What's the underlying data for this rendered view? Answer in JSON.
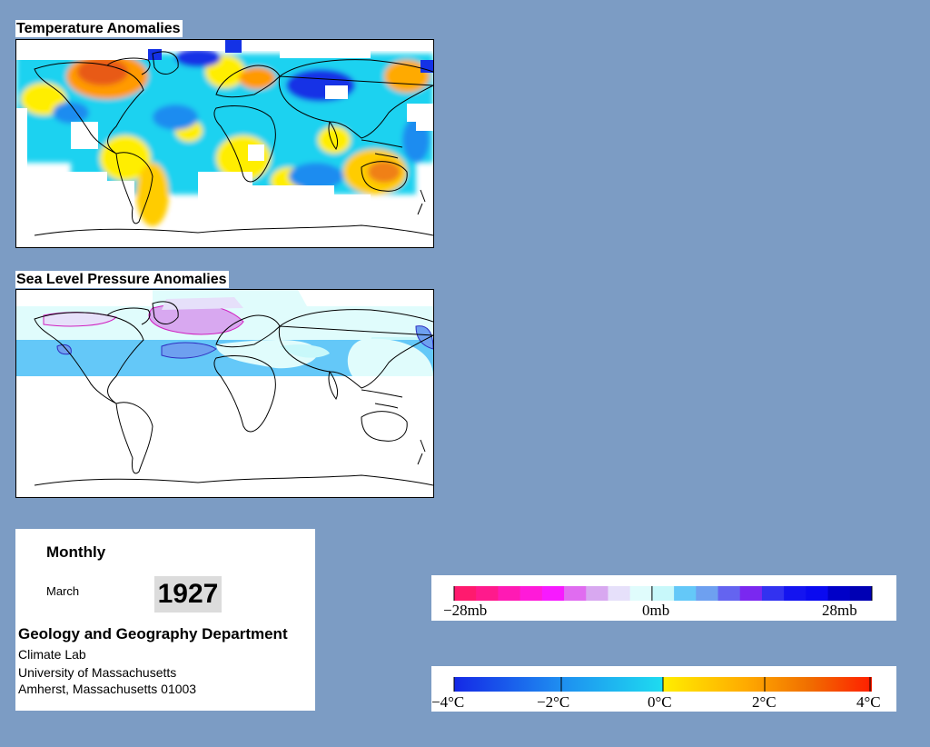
{
  "temperature_panel": {
    "title": "Temperature Anomalies"
  },
  "pressure_panel": {
    "title": "Sea Level Pressure Anomalies"
  },
  "info": {
    "period": "Monthly",
    "month": "March",
    "year": "1927",
    "department": "Geology and Geography Department",
    "lab": "Climate Lab",
    "university": "University of Massachusetts",
    "address": "Amherst, Massachusetts 01003"
  },
  "pressure_legend": {
    "labels": [
      "−28mb",
      "0mb",
      "28mb"
    ],
    "colors": [
      "#ff1a6e",
      "#ff1a8c",
      "#ff1ab4",
      "#ff1ad9",
      "#f71aff",
      "#e06cf0",
      "#d8a8f0",
      "#e6e0fa",
      "#e0fcfc",
      "#c8f8fa",
      "#64c8f8",
      "#6ea0f0",
      "#6464f0",
      "#7a28f0",
      "#3232f0",
      "#1414f0",
      "#0a0af0",
      "#0000c8",
      "#0000b4"
    ]
  },
  "temperature_legend": {
    "labels": [
      "−4°C",
      "−2°C",
      "0°C",
      "2°C",
      "4°C"
    ],
    "stops": [
      "#1428e6",
      "#1e8cf0",
      "#1edcf0",
      "#ffee00",
      "#ffaa00",
      "#f06e00",
      "#ff1e00"
    ]
  }
}
